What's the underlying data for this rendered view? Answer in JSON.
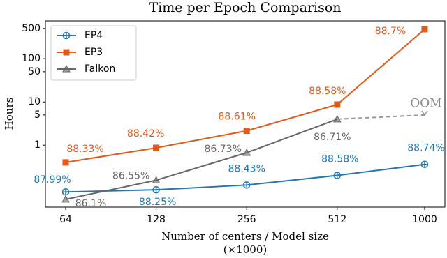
{
  "chart_data": {
    "type": "line",
    "title": "Time per Epoch Comparison",
    "xlabel": "Number of centers / Model size",
    "xlabel_note": "(×1000)",
    "ylabel": "Hours",
    "x": [
      64,
      128,
      256,
      512,
      1000
    ],
    "xscale": "log",
    "yscale": "log",
    "xlim": [
      54.8,
      1168
    ],
    "ylim": [
      0.037,
      748
    ],
    "xticks": [
      64,
      128,
      256,
      512,
      1000
    ],
    "yticks": [
      1,
      5,
      10,
      50,
      100,
      500
    ],
    "legend": "upper left",
    "series": [
      {
        "name": "EP4",
        "color": "#1f77b4",
        "marker": "circle-plus",
        "values": [
          0.083,
          0.093,
          0.12,
          0.2,
          0.36
        ],
        "labels": [
          "87.99%",
          "88.25%",
          "88.43%",
          "88.58%",
          "88.74%"
        ]
      },
      {
        "name": "EP3",
        "color": "#e0581a",
        "marker": "square",
        "values": [
          0.4,
          0.87,
          2.15,
          8.7,
          480
        ],
        "labels": [
          "88.33%",
          "88.42%",
          "88.61%",
          "88.58%",
          "88.7%"
        ]
      },
      {
        "name": "Falkon",
        "color": "#666666",
        "marker": "triangle",
        "values": [
          0.056,
          0.155,
          0.67,
          4.0,
          null
        ],
        "labels": [
          "86.1%",
          "86.55%",
          "86.73%",
          "86.71%",
          null
        ]
      }
    ],
    "oom": {
      "label": "OOM",
      "value": 5
    }
  }
}
